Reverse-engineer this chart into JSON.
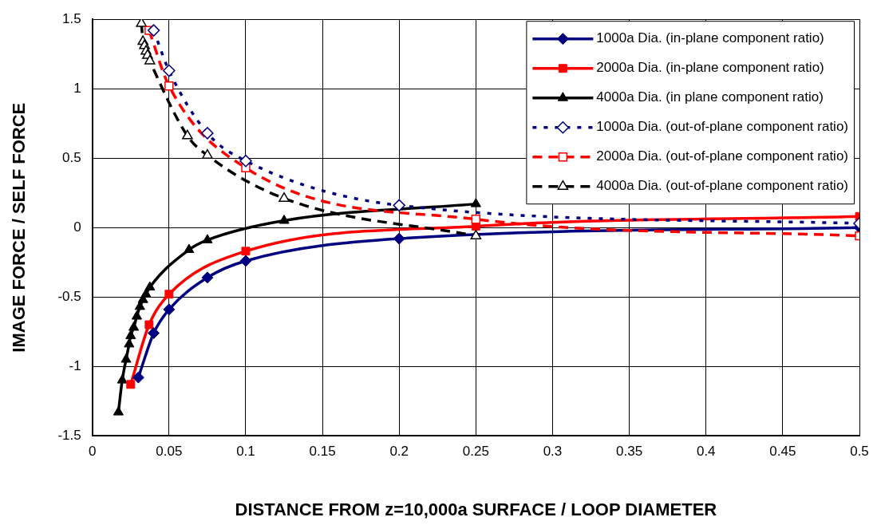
{
  "chart_data": {
    "type": "line",
    "xlabel": "DISTANCE FROM z=10,000a SURFACE / LOOP DIAMETER",
    "ylabel": "IMAGE FORCE / SELF FORCE",
    "xlim": [
      0,
      0.5
    ],
    "xticks": [
      0,
      0.05,
      0.1,
      0.15,
      0.2,
      0.25,
      0.3,
      0.35,
      0.4,
      0.45,
      0.5
    ],
    "ylim": [
      -1.5,
      1.5
    ],
    "yticks": [
      -1.5,
      -1,
      -0.5,
      0,
      0.5,
      1,
      1.5
    ],
    "grid": true,
    "legend": "top right",
    "series": [
      {
        "name": "1000a Dia. (in-plane component ratio)",
        "color": "#000080",
        "marker": "diamond",
        "line_style": "solid",
        "x": [
          0.03,
          0.04,
          0.05,
          0.075,
          0.1,
          0.2,
          0.5
        ],
        "values": [
          -1.08,
          -0.76,
          -0.59,
          -0.36,
          -0.24,
          -0.08,
          0
        ]
      },
      {
        "name": "2000a Dia. (in-plane component ratio)",
        "color": "#ff0000",
        "marker": "square",
        "line_style": "solid",
        "x": [
          0.025,
          0.037,
          0.05,
          0.1,
          0.25,
          0.5
        ],
        "values": [
          -1.13,
          -0.7,
          -0.48,
          -0.17,
          0.01,
          0.08
        ]
      },
      {
        "name": "4000a Dia. (in plane component ratio)",
        "color": "#000000",
        "marker": "triangle",
        "line_style": "solid",
        "x": [
          0.017,
          0.0195,
          0.022,
          0.024,
          0.025,
          0.027,
          0.029,
          0.031,
          0.033,
          0.035,
          0.0375,
          0.063,
          0.075,
          0.125,
          0.25
        ],
        "values": [
          -1.33,
          -1.1,
          -0.95,
          -0.84,
          -0.78,
          -0.72,
          -0.64,
          -0.57,
          -0.52,
          -0.48,
          -0.43,
          -0.16,
          -0.09,
          0.05,
          0.17
        ]
      },
      {
        "name": "1000a Dia. (out-of-plane component ratio)",
        "color": "#000080",
        "marker": "diamond",
        "line_style": "dotted",
        "x": [
          0.04,
          0.05,
          0.075,
          0.1,
          0.2,
          0.5
        ],
        "values": [
          1.42,
          1.13,
          0.68,
          0.48,
          0.16,
          0.03
        ]
      },
      {
        "name": "2000a Dia. (out-of-plane component ratio)",
        "color": "#ff0000",
        "marker": "square",
        "line_style": "dashed",
        "x": [
          0.037,
          0.05,
          0.1,
          0.25,
          0.5
        ],
        "values": [
          1.42,
          1.02,
          0.43,
          0.06,
          -0.06
        ]
      },
      {
        "name": "4000a Dia. (out-of-plane component ratio)",
        "color": "#000000",
        "marker": "triangle",
        "line_style": "dashed",
        "x": [
          0.032,
          0.033,
          0.034,
          0.035,
          0.036,
          0.0375,
          0.062,
          0.075,
          0.125,
          0.25
        ],
        "values": [
          1.47,
          1.34,
          1.31,
          1.27,
          1.24,
          1.2,
          0.66,
          0.52,
          0.21,
          -0.06
        ]
      }
    ]
  }
}
